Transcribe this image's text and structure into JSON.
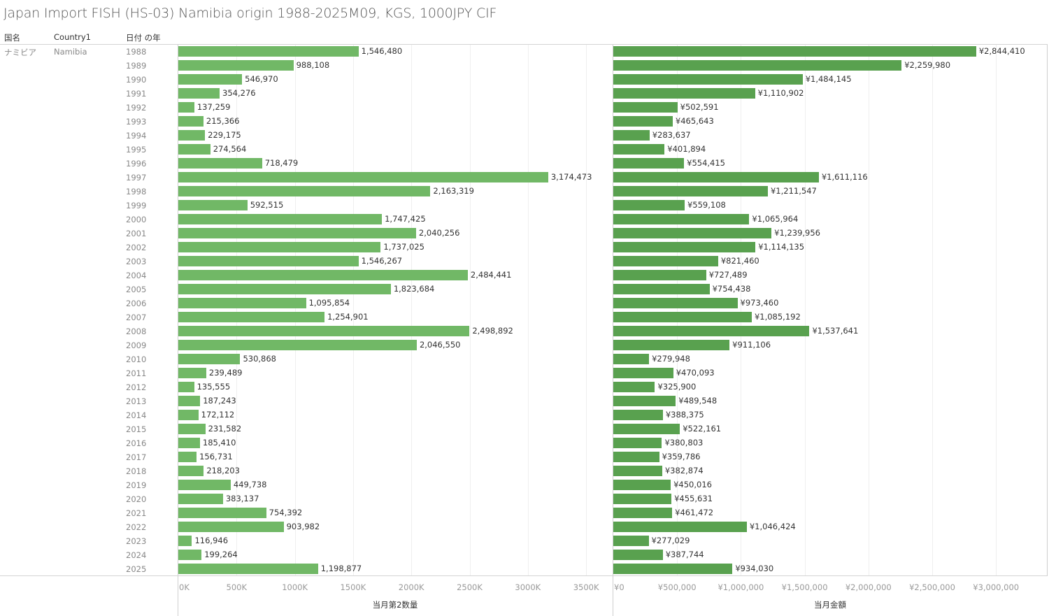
{
  "title": "Japan Import FISH (HS-03) Namibia origin 1988-2025M09, KGS, 1000JPY CIF",
  "headers": {
    "country_jp": "国名",
    "country_en": "Country1",
    "year": "日付 の年"
  },
  "row_header": {
    "country_jp": "ナミビア",
    "country_en": "Namibia"
  },
  "colors": {
    "quantity_bar": "#71b866",
    "amount_bar": "#59a14f"
  },
  "chart_data": [
    {
      "type": "bar",
      "orientation": "horizontal",
      "title": "",
      "xlabel": "当月第2数量",
      "ylabel": "日付 の年",
      "xlim": [
        0,
        3700000
      ],
      "ticks": [
        "0K",
        "500K",
        "1000K",
        "1500K",
        "2000K",
        "2500K",
        "3000K",
        "3500K"
      ],
      "tick_values": [
        0,
        500000,
        1000000,
        1500000,
        2000000,
        2500000,
        3000000,
        3500000
      ],
      "grid": true,
      "categories": [
        "1988",
        "1989",
        "1990",
        "1991",
        "1992",
        "1993",
        "1994",
        "1995",
        "1996",
        "1997",
        "1998",
        "1999",
        "2000",
        "2001",
        "2002",
        "2003",
        "2004",
        "2005",
        "2006",
        "2007",
        "2008",
        "2009",
        "2010",
        "2011",
        "2012",
        "2013",
        "2014",
        "2015",
        "2016",
        "2017",
        "2018",
        "2019",
        "2020",
        "2021",
        "2022",
        "2023",
        "2024",
        "2025"
      ],
      "values": [
        1546480,
        988108,
        546970,
        354276,
        137259,
        215366,
        229175,
        274564,
        718479,
        3174473,
        2163319,
        592515,
        1747425,
        2040256,
        1737025,
        1546267,
        2484441,
        1823684,
        1095854,
        1254901,
        2498892,
        2046550,
        530868,
        239489,
        135555,
        187243,
        172112,
        231582,
        185410,
        156731,
        218203,
        449738,
        383137,
        754392,
        903982,
        116946,
        199264,
        1198877
      ],
      "labels": [
        "1,546,480",
        "988,108",
        "546,970",
        "354,276",
        "137,259",
        "215,366",
        "229,175",
        "274,564",
        "718,479",
        "3,174,473",
        "2,163,319",
        "592,515",
        "1,747,425",
        "2,040,256",
        "1,737,025",
        "1,546,267",
        "2,484,441",
        "1,823,684",
        "1,095,854",
        "1,254,901",
        "2,498,892",
        "2,046,550",
        "530,868",
        "239,489",
        "135,555",
        "187,243",
        "172,112",
        "231,582",
        "185,410",
        "156,731",
        "218,203",
        "449,738",
        "383,137",
        "754,392",
        "903,982",
        "116,946",
        "199,264",
        "1,198,877"
      ]
    },
    {
      "type": "bar",
      "orientation": "horizontal",
      "title": "",
      "xlabel": "当月金額",
      "ylabel": "日付 の年",
      "xlim": [
        0,
        3400000
      ],
      "ticks": [
        "¥0",
        "¥500,000",
        "¥1,000,000",
        "¥1,500,000",
        "¥2,000,000",
        "¥2,500,000",
        "¥3,000,000"
      ],
      "tick_values": [
        0,
        500000,
        1000000,
        1500000,
        2000000,
        2500000,
        3000000
      ],
      "grid": true,
      "categories": [
        "1988",
        "1989",
        "1990",
        "1991",
        "1992",
        "1993",
        "1994",
        "1995",
        "1996",
        "1997",
        "1998",
        "1999",
        "2000",
        "2001",
        "2002",
        "2003",
        "2004",
        "2005",
        "2006",
        "2007",
        "2008",
        "2009",
        "2010",
        "2011",
        "2012",
        "2013",
        "2014",
        "2015",
        "2016",
        "2017",
        "2018",
        "2019",
        "2020",
        "2021",
        "2022",
        "2023",
        "2024",
        "2025"
      ],
      "values": [
        2844410,
        2259980,
        1484145,
        1110902,
        502591,
        465643,
        283637,
        401894,
        554415,
        1611116,
        1211547,
        559108,
        1065964,
        1239956,
        1114135,
        821460,
        727489,
        754438,
        973460,
        1085192,
        1537641,
        911106,
        279948,
        470093,
        325900,
        489548,
        388375,
        522161,
        380803,
        359786,
        382874,
        450016,
        455631,
        461472,
        1046424,
        277029,
        387744,
        934030
      ],
      "labels": [
        "¥2,844,410",
        "¥2,259,980",
        "¥1,484,145",
        "¥1,110,902",
        "¥502,591",
        "¥465,643",
        "¥283,637",
        "¥401,894",
        "¥554,415",
        "¥1,611,116",
        "¥1,211,547",
        "¥559,108",
        "¥1,065,964",
        "¥1,239,956",
        "¥1,114,135",
        "¥821,460",
        "¥727,489",
        "¥754,438",
        "¥973,460",
        "¥1,085,192",
        "¥1,537,641",
        "¥911,106",
        "¥279,948",
        "¥470,093",
        "¥325,900",
        "¥489,548",
        "¥388,375",
        "¥522,161",
        "¥380,803",
        "¥359,786",
        "¥382,874",
        "¥450,016",
        "¥455,631",
        "¥461,472",
        "¥1,046,424",
        "¥277,029",
        "¥387,744",
        "¥934,030"
      ]
    }
  ]
}
